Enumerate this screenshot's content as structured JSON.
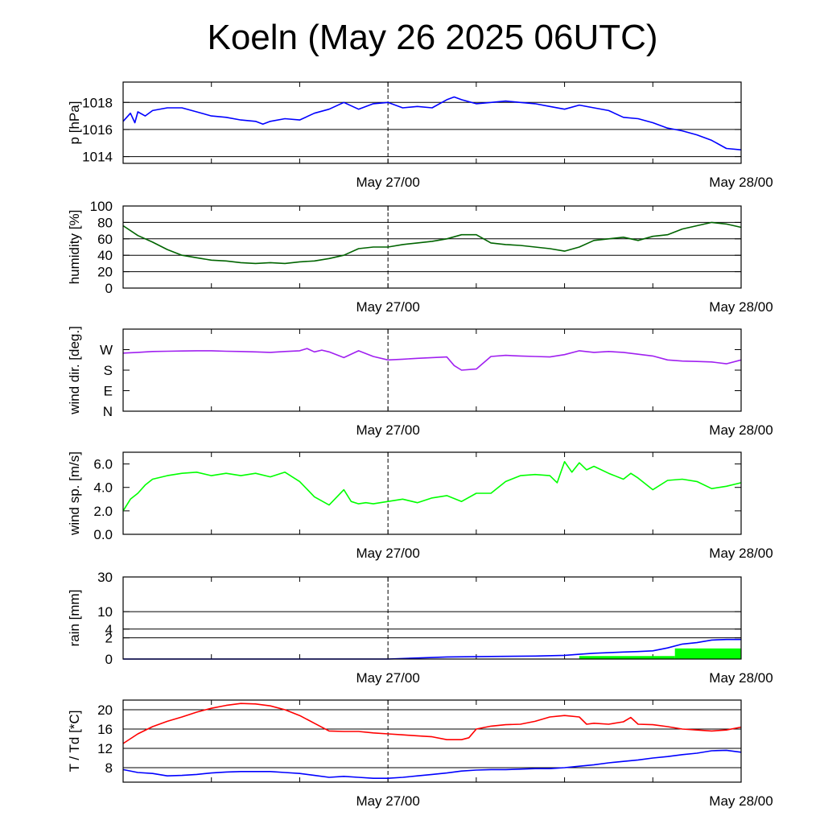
{
  "page": {
    "title": "Koeln (May 26 2025 06UTC)"
  },
  "chart_data": [
    {
      "type": "line",
      "ylabel": "p [hPa]",
      "ylim": [
        1013.5,
        1019.5
      ],
      "yticks": [
        {
          "v": 1014,
          "label": "1014"
        },
        {
          "v": 1016,
          "label": "1016"
        },
        {
          "v": 1018,
          "label": "1018"
        }
      ],
      "xlim": [
        0,
        42
      ],
      "xticks": [
        {
          "x": 18,
          "label": "May 27/00"
        },
        {
          "x": 42,
          "label": "May 28/00"
        }
      ],
      "grid": true,
      "series": [
        {
          "color": "#0000ff",
          "x": [
            0,
            0.5,
            0.8,
            1,
            1.5,
            2,
            3,
            4,
            5,
            6,
            7,
            8,
            9,
            9.5,
            10,
            11,
            12,
            13,
            14,
            15,
            16,
            17,
            18,
            19,
            20,
            21,
            22,
            22.5,
            23,
            24,
            25,
            26,
            27,
            28,
            29,
            30,
            31,
            32,
            33,
            34,
            35,
            36,
            37,
            37.5,
            38,
            39,
            40,
            41,
            42
          ],
          "y": [
            1016.6,
            1017.2,
            1016.5,
            1017.3,
            1017.0,
            1017.4,
            1017.6,
            1017.6,
            1017.3,
            1017.0,
            1016.9,
            1016.7,
            1016.6,
            1016.4,
            1016.6,
            1016.8,
            1016.7,
            1017.2,
            1017.5,
            1018.0,
            1017.5,
            1017.9,
            1018.0,
            1017.6,
            1017.7,
            1017.6,
            1018.2,
            1018.4,
            1018.2,
            1017.9,
            1018.0,
            1018.1,
            1018.0,
            1017.9,
            1017.7,
            1017.5,
            1017.8,
            1017.6,
            1017.4,
            1016.9,
            1016.8,
            1016.5,
            1016.1,
            1016.0,
            1015.9,
            1015.6,
            1015.2,
            1014.6,
            1014.5
          ]
        }
      ]
    },
    {
      "type": "line",
      "ylabel": "humidity [%]",
      "ylim": [
        0,
        100
      ],
      "yticks": [
        {
          "v": 0,
          "label": "0"
        },
        {
          "v": 20,
          "label": "20"
        },
        {
          "v": 40,
          "label": "40"
        },
        {
          "v": 60,
          "label": "60"
        },
        {
          "v": 80,
          "label": "80"
        },
        {
          "v": 100,
          "label": "100"
        }
      ],
      "xlim": [
        0,
        42
      ],
      "xticks": [
        {
          "x": 18,
          "label": "May 27/00"
        },
        {
          "x": 42,
          "label": "May 28/00"
        }
      ],
      "grid": true,
      "series": [
        {
          "color": "#006400",
          "x": [
            0,
            1,
            2,
            3,
            4,
            5,
            6,
            7,
            8,
            9,
            10,
            11,
            12,
            13,
            14,
            15,
            16,
            17,
            18,
            19,
            20,
            21,
            22,
            23,
            24,
            25,
            26,
            27,
            28,
            29,
            30,
            31,
            32,
            33,
            34,
            35,
            36,
            37,
            38,
            39,
            40,
            41,
            42
          ],
          "y": [
            76,
            64,
            56,
            47,
            40,
            37,
            34,
            33,
            31,
            30,
            31,
            30,
            32,
            33,
            36,
            40,
            48,
            50,
            50,
            53,
            55,
            57,
            60,
            65,
            65,
            55,
            53,
            52,
            50,
            48,
            45,
            50,
            58,
            60,
            62,
            58,
            63,
            65,
            72,
            76,
            80,
            78,
            74
          ]
        }
      ]
    },
    {
      "type": "line",
      "ylabel": "wind dir. [deg.]",
      "ylim": [
        0,
        360
      ],
      "yticks": [
        {
          "v": 0,
          "label": "N"
        },
        {
          "v": 90,
          "label": "E"
        },
        {
          "v": 180,
          "label": "S"
        },
        {
          "v": 270,
          "label": "W"
        }
      ],
      "xlim": [
        0,
        42
      ],
      "xticks": [
        {
          "x": 18,
          "label": "May 27/00"
        },
        {
          "x": 42,
          "label": "May 28/00"
        }
      ],
      "grid": false,
      "series": [
        {
          "color": "#a020f0",
          "x": [
            0,
            1,
            2,
            3,
            4,
            5,
            6,
            7,
            8,
            9,
            10,
            11,
            12,
            12.5,
            13,
            13.5,
            14,
            15,
            16,
            17,
            18,
            19,
            20,
            21,
            22,
            22.5,
            23,
            24,
            25,
            26,
            27,
            28,
            29,
            30,
            31,
            32,
            33,
            34,
            35,
            36,
            37,
            38,
            39,
            40,
            41,
            42
          ],
          "y": [
            255,
            258,
            262,
            263,
            264,
            265,
            265,
            263,
            262,
            260,
            258,
            262,
            265,
            275,
            260,
            268,
            260,
            235,
            265,
            240,
            225,
            228,
            232,
            235,
            238,
            200,
            180,
            185,
            240,
            245,
            242,
            240,
            238,
            248,
            265,
            258,
            262,
            258,
            250,
            242,
            225,
            220,
            218,
            216,
            208,
            225
          ]
        }
      ]
    },
    {
      "type": "line",
      "ylabel": "wind sp. [m/s]",
      "ylim": [
        0,
        7
      ],
      "yticks": [
        {
          "v": 0,
          "label": "0.0"
        },
        {
          "v": 2,
          "label": "2.0"
        },
        {
          "v": 4,
          "label": "4.0"
        },
        {
          "v": 6,
          "label": "6.0"
        }
      ],
      "xlim": [
        0,
        42
      ],
      "xticks": [
        {
          "x": 18,
          "label": "May 27/00"
        },
        {
          "x": 42,
          "label": "May 28/00"
        }
      ],
      "grid": false,
      "series": [
        {
          "color": "#00ff00",
          "x": [
            0,
            0.5,
            1,
            1.5,
            2,
            3,
            4,
            5,
            6,
            7,
            8,
            9,
            10,
            11,
            12,
            13,
            14,
            15,
            15.5,
            16,
            16.5,
            17,
            18,
            19,
            20,
            21,
            22,
            23,
            24,
            25,
            26,
            27,
            28,
            29,
            29.5,
            30,
            30.5,
            31,
            31.5,
            32,
            33,
            34,
            34.5,
            35,
            36,
            37,
            38,
            39,
            40,
            41,
            42
          ],
          "y": [
            2.0,
            3.0,
            3.5,
            4.2,
            4.7,
            5.0,
            5.2,
            5.3,
            5.0,
            5.2,
            5.0,
            5.2,
            4.9,
            5.3,
            4.5,
            3.2,
            2.5,
            3.8,
            2.8,
            2.6,
            2.7,
            2.6,
            2.8,
            3.0,
            2.7,
            3.1,
            3.3,
            2.8,
            3.5,
            3.5,
            4.5,
            5.0,
            5.1,
            5.0,
            4.4,
            6.2,
            5.3,
            6.1,
            5.5,
            5.8,
            5.2,
            4.7,
            5.2,
            4.8,
            3.8,
            4.6,
            4.7,
            4.5,
            3.9,
            4.1,
            4.4
          ]
        }
      ]
    },
    {
      "type": "area",
      "ylabel": "rain [mm]",
      "scale": "sqrt",
      "ylim": [
        0,
        30
      ],
      "yticks": [
        {
          "v": 0,
          "label": "0"
        },
        {
          "v": 2,
          "label": "2"
        },
        {
          "v": 4,
          "label": "4"
        },
        {
          "v": 10,
          "label": "10"
        },
        {
          "v": 30,
          "label": "30"
        }
      ],
      "xlim": [
        0,
        42
      ],
      "xticks": [
        {
          "x": 18,
          "label": "May 27/00"
        },
        {
          "x": 42,
          "label": "May 28/00"
        }
      ],
      "grid": true,
      "series": [
        {
          "color": "#0000ff",
          "x": [
            0,
            18,
            22,
            25,
            28,
            30,
            31,
            32,
            33,
            34,
            35,
            36,
            37,
            38,
            39,
            40,
            41,
            42
          ],
          "y": [
            0,
            0,
            0.02,
            0.03,
            0.04,
            0.06,
            0.1,
            0.15,
            0.18,
            0.22,
            0.25,
            0.3,
            0.55,
            1.0,
            1.2,
            1.6,
            1.7,
            1.7
          ]
        },
        {
          "color": "#00ff00",
          "kind": "bars",
          "x": [
            31,
            37.5
          ],
          "width": [
            6.5,
            4.5
          ],
          "y": [
            0.04,
            0.5
          ]
        }
      ]
    },
    {
      "type": "line",
      "ylabel": "T / Td [*C]",
      "ylim": [
        5,
        22
      ],
      "yticks": [
        {
          "v": 8,
          "label": "8"
        },
        {
          "v": 12,
          "label": "12"
        },
        {
          "v": 16,
          "label": "16"
        },
        {
          "v": 20,
          "label": "20"
        }
      ],
      "xlim": [
        0,
        42
      ],
      "xticks": [
        {
          "x": 18,
          "label": "May 27/00"
        },
        {
          "x": 42,
          "label": "May 28/00"
        }
      ],
      "grid": true,
      "series": [
        {
          "color": "#ff0000",
          "x": [
            0,
            1,
            2,
            3,
            4,
            5,
            6,
            7,
            8,
            9,
            10,
            11,
            12,
            13,
            14,
            15,
            16,
            17,
            18,
            19,
            20,
            21,
            22,
            23,
            23.5,
            24,
            25,
            26,
            27,
            28,
            29,
            30,
            31,
            31.5,
            32,
            33,
            34,
            34.5,
            35,
            36,
            37,
            38,
            39,
            40,
            41,
            42
          ],
          "y": [
            13.0,
            15.0,
            16.5,
            17.6,
            18.5,
            19.5,
            20.3,
            20.9,
            21.3,
            21.2,
            20.8,
            20.0,
            18.8,
            17.2,
            15.6,
            15.5,
            15.5,
            15.2,
            15.0,
            14.8,
            14.6,
            14.4,
            13.8,
            13.8,
            14.2,
            16.0,
            16.6,
            16.9,
            17.0,
            17.6,
            18.5,
            18.8,
            18.5,
            17.0,
            17.2,
            17.0,
            17.5,
            18.4,
            17.0,
            16.9,
            16.5,
            16.0,
            15.8,
            15.6,
            15.8,
            16.4
          ]
        },
        {
          "color": "#0000ff",
          "x": [
            0,
            1,
            2,
            3,
            4,
            5,
            6,
            7,
            8,
            9,
            10,
            11,
            12,
            13,
            14,
            15,
            16,
            17,
            18,
            19,
            20,
            21,
            22,
            23,
            24,
            25,
            26,
            27,
            28,
            29,
            30,
            31,
            32,
            33,
            34,
            35,
            36,
            37,
            38,
            39,
            40,
            41,
            42
          ],
          "y": [
            7.6,
            7.0,
            6.8,
            6.3,
            6.4,
            6.6,
            6.9,
            7.1,
            7.2,
            7.2,
            7.2,
            7.0,
            6.8,
            6.4,
            6.0,
            6.2,
            6.0,
            5.8,
            5.8,
            6.0,
            6.3,
            6.6,
            6.9,
            7.3,
            7.5,
            7.6,
            7.6,
            7.7,
            7.8,
            7.8,
            8.0,
            8.3,
            8.6,
            9.0,
            9.3,
            9.6,
            10.0,
            10.3,
            10.7,
            11.0,
            11.5,
            11.6,
            11.2
          ]
        }
      ]
    }
  ]
}
